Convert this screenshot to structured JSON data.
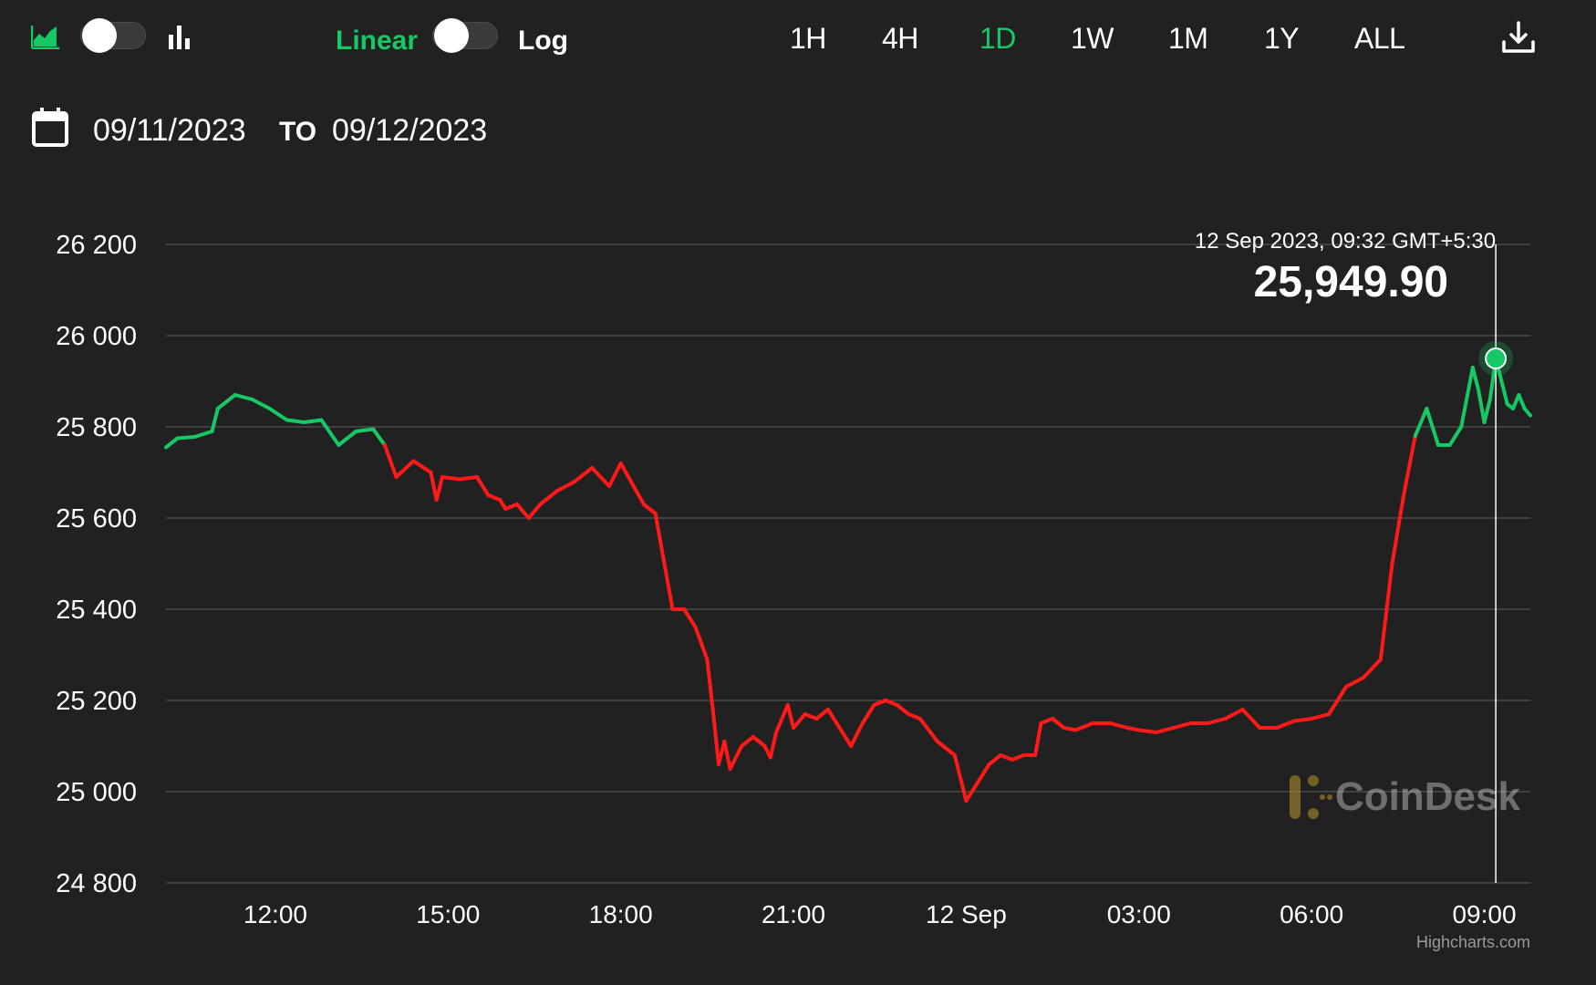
{
  "toolbar": {
    "area_chart_icon": "area-chart-icon",
    "bar_chart_icon": "bar-chart-icon",
    "scale_linear": "Linear",
    "scale_log": "Log",
    "ranges": [
      "1H",
      "4H",
      "1D",
      "1W",
      "1M",
      "1Y",
      "ALL"
    ],
    "active_range": "1D",
    "download_icon": "download-icon",
    "accent_color": "#17c964"
  },
  "dates": {
    "calendar_icon": "calendar-icon",
    "from": "09/11/2023",
    "to_label": "TO",
    "to": "09/12/2023"
  },
  "tooltip": {
    "timestamp": "12 Sep 2023, 09:32 GMT+5:30",
    "price": "25,949.90"
  },
  "watermark": "CoinDesk",
  "credits": "Highcharts.com",
  "chart_data": {
    "type": "line",
    "title": "",
    "xlabel": "",
    "ylabel": "",
    "ylim": [
      24800,
      26200
    ],
    "y_ticks": [
      24800,
      25000,
      25200,
      25400,
      25600,
      25800,
      26000,
      26200
    ],
    "y_tick_labels": [
      "24 800",
      "25 000",
      "25 200",
      "25 400",
      "25 600",
      "25 800",
      "26 000",
      "26 200"
    ],
    "x_unit": "hours since 00:00 on 11 Sep 2023",
    "xlim": [
      10.1,
      33.8
    ],
    "x_ticks": [
      12,
      15,
      18,
      21,
      24,
      27,
      30,
      33
    ],
    "x_tick_labels": [
      "12:00",
      "15:00",
      "18:00",
      "21:00",
      "12 Sep",
      "03:00",
      "06:00",
      "09:00"
    ],
    "up_color": "#17c964",
    "down_color": "#ff1a1a",
    "threshold": 25760,
    "series": [
      {
        "x": [
          10.1,
          10.3,
          10.6,
          10.9,
          11.0,
          11.3,
          11.6,
          11.9,
          12.2,
          12.5,
          12.8,
          13.1,
          13.4,
          13.7,
          13.9,
          14.1,
          14.4,
          14.7,
          14.8,
          14.9,
          15.2,
          15.5,
          15.7,
          15.9,
          16.0,
          16.2,
          16.4,
          16.6,
          16.9,
          17.2,
          17.5,
          17.8,
          18.0,
          18.4,
          18.6,
          18.9,
          19.1,
          19.3,
          19.5,
          19.6,
          19.7,
          19.8,
          19.9,
          20.1,
          20.3,
          20.5,
          20.6,
          20.7,
          20.9,
          21.0,
          21.2,
          21.4,
          21.6,
          21.8,
          22.0,
          22.2,
          22.4,
          22.6,
          22.8,
          23.0,
          23.2,
          23.5,
          23.8,
          24.0,
          24.2,
          24.4,
          24.6,
          24.8,
          25.0,
          25.2,
          25.3,
          25.5,
          25.7,
          25.9,
          26.2,
          26.5,
          26.8,
          27.0,
          27.3,
          27.6,
          27.9,
          28.2,
          28.5,
          28.8,
          29.1,
          29.4,
          29.7,
          30.0,
          30.3,
          30.6,
          30.9,
          31.2,
          31.4,
          31.6,
          31.8,
          32.0,
          32.2,
          32.4,
          32.6,
          32.8,
          32.9,
          33.0,
          33.1,
          33.2,
          33.3,
          33.4,
          33.5,
          33.6,
          33.7,
          33.8
        ],
        "values": [
          25755,
          25775,
          25778,
          25790,
          25840,
          25870,
          25860,
          25840,
          25815,
          25810,
          25815,
          25760,
          25790,
          25795,
          25760,
          25690,
          25725,
          25700,
          25640,
          25690,
          25685,
          25690,
          25650,
          25640,
          25620,
          25630,
          25600,
          25630,
          25660,
          25680,
          25710,
          25670,
          25720,
          25630,
          25610,
          25400,
          25400,
          25360,
          25290,
          25180,
          25060,
          25110,
          25050,
          25100,
          25120,
          25100,
          25075,
          25130,
          25190,
          25140,
          25170,
          25160,
          25180,
          25140,
          25100,
          25150,
          25190,
          25200,
          25190,
          25170,
          25160,
          25110,
          25080,
          24980,
          25020,
          25060,
          25080,
          25070,
          25080,
          25080,
          25150,
          25160,
          25140,
          25135,
          25150,
          25150,
          25140,
          25135,
          25130,
          25140,
          25150,
          25150,
          25160,
          25180,
          25140,
          25140,
          25155,
          25160,
          25170,
          25230,
          25250,
          25290,
          25500,
          25650,
          25780,
          25840,
          25760,
          25760,
          25800,
          25930,
          25880,
          25810,
          25860,
          25949.9,
          25900,
          25850,
          25840,
          25870,
          25840,
          25825
        ],
        "name": ""
      }
    ],
    "grid": true,
    "legend": "none"
  }
}
